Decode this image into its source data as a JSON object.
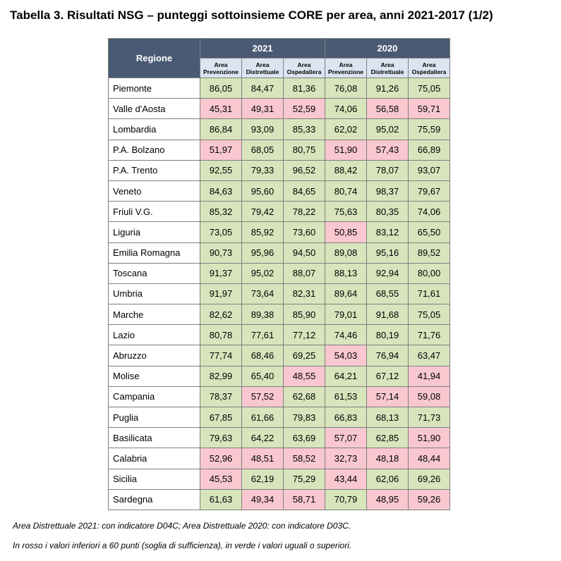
{
  "title": "Tabella 3. Risultati NSG – punteggi sottoinsieme CORE per area, anni 2021-2017 (1/2)",
  "header": {
    "region_label": "Regione",
    "years": [
      "2021",
      "2020"
    ],
    "areas": [
      "Area Prevenzione",
      "Area Distrettuale",
      "Area Ospedaliera"
    ]
  },
  "threshold": 60,
  "colors": {
    "header_bg": "#4a5a74",
    "subheader_bg": "#dbe4f1",
    "ok": "#d8e4bc",
    "ko": "#f8c7cf"
  },
  "rows": [
    {
      "region": "Piemonte",
      "values": [
        "86,05",
        "84,47",
        "81,36",
        "76,08",
        "91,26",
        "75,05"
      ]
    },
    {
      "region": "Valle d'Aosta",
      "values": [
        "45,31",
        "49,31",
        "52,59",
        "74,06",
        "56,58",
        "59,71"
      ]
    },
    {
      "region": "Lombardia",
      "values": [
        "86,84",
        "93,09",
        "85,33",
        "62,02",
        "95,02",
        "75,59"
      ]
    },
    {
      "region": "P.A. Bolzano",
      "values": [
        "51,97",
        "68,05",
        "80,75",
        "51,90",
        "57,43",
        "66,89"
      ]
    },
    {
      "region": "P.A.  Trento",
      "values": [
        "92,55",
        "79,33",
        "96,52",
        "88,42",
        "78,07",
        "93,07"
      ]
    },
    {
      "region": "Veneto",
      "values": [
        "84,63",
        "95,60",
        "84,65",
        "80,74",
        "98,37",
        "79,67"
      ]
    },
    {
      "region": "Friuli V.G.",
      "values": [
        "85,32",
        "79,42",
        "78,22",
        "75,63",
        "80,35",
        "74,06"
      ]
    },
    {
      "region": "Liguria",
      "values": [
        "73,05",
        "85,92",
        "73,60",
        "50,85",
        "83,12",
        "65,50"
      ]
    },
    {
      "region": "Emilia Romagna",
      "values": [
        "90,73",
        "95,96",
        "94,50",
        "89,08",
        "95,16",
        "89,52"
      ]
    },
    {
      "region": "Toscana",
      "values": [
        "91,37",
        "95,02",
        "88,07",
        "88,13",
        "92,94",
        "80,00"
      ]
    },
    {
      "region": "Umbria",
      "values": [
        "91,97",
        "73,64",
        "82,31",
        "89,64",
        "68,55",
        "71,61"
      ]
    },
    {
      "region": "Marche",
      "values": [
        "82,62",
        "89,38",
        "85,90",
        "79,01",
        "91,68",
        "75,05"
      ]
    },
    {
      "region": "Lazio",
      "values": [
        "80,78",
        "77,61",
        "77,12",
        "74,46",
        "80,19",
        "71,76"
      ]
    },
    {
      "region": "Abruzzo",
      "values": [
        "77,74",
        "68,46",
        "69,25",
        "54,03",
        "76,94",
        "63,47"
      ]
    },
    {
      "region": "Molise",
      "values": [
        "82,99",
        "65,40",
        "48,55",
        "64,21",
        "67,12",
        "41,94"
      ]
    },
    {
      "region": "Campania",
      "values": [
        "78,37",
        "57,52",
        "62,68",
        "61,53",
        "57,14",
        "59,08"
      ]
    },
    {
      "region": "Puglia",
      "values": [
        "67,85",
        "61,66",
        "79,83",
        "66,83",
        "68,13",
        "71,73"
      ]
    },
    {
      "region": "Basilicata",
      "values": [
        "79,63",
        "64,22",
        "63,69",
        "57,07",
        "62,85",
        "51,90"
      ]
    },
    {
      "region": "Calabria",
      "values": [
        "52,96",
        "48,51",
        "58,52",
        "32,73",
        "48,18",
        "48,44"
      ]
    },
    {
      "region": "Sicilia",
      "values": [
        "45,53",
        "62,19",
        "75,29",
        "43,44",
        "62,06",
        "69,26"
      ]
    },
    {
      "region": "Sardegna",
      "values": [
        "61,63",
        "49,34",
        "58,71",
        "70,79",
        "48,95",
        "59,26"
      ]
    }
  ],
  "notes": [
    "Area Distrettuale 2021: con indicatore D04C; Area Distrettuale 2020: con indicatore D03C.",
    "In rosso i valori inferiori a 60 punti (soglia di sufficienza), in verde i valori uguali o superiori."
  ]
}
